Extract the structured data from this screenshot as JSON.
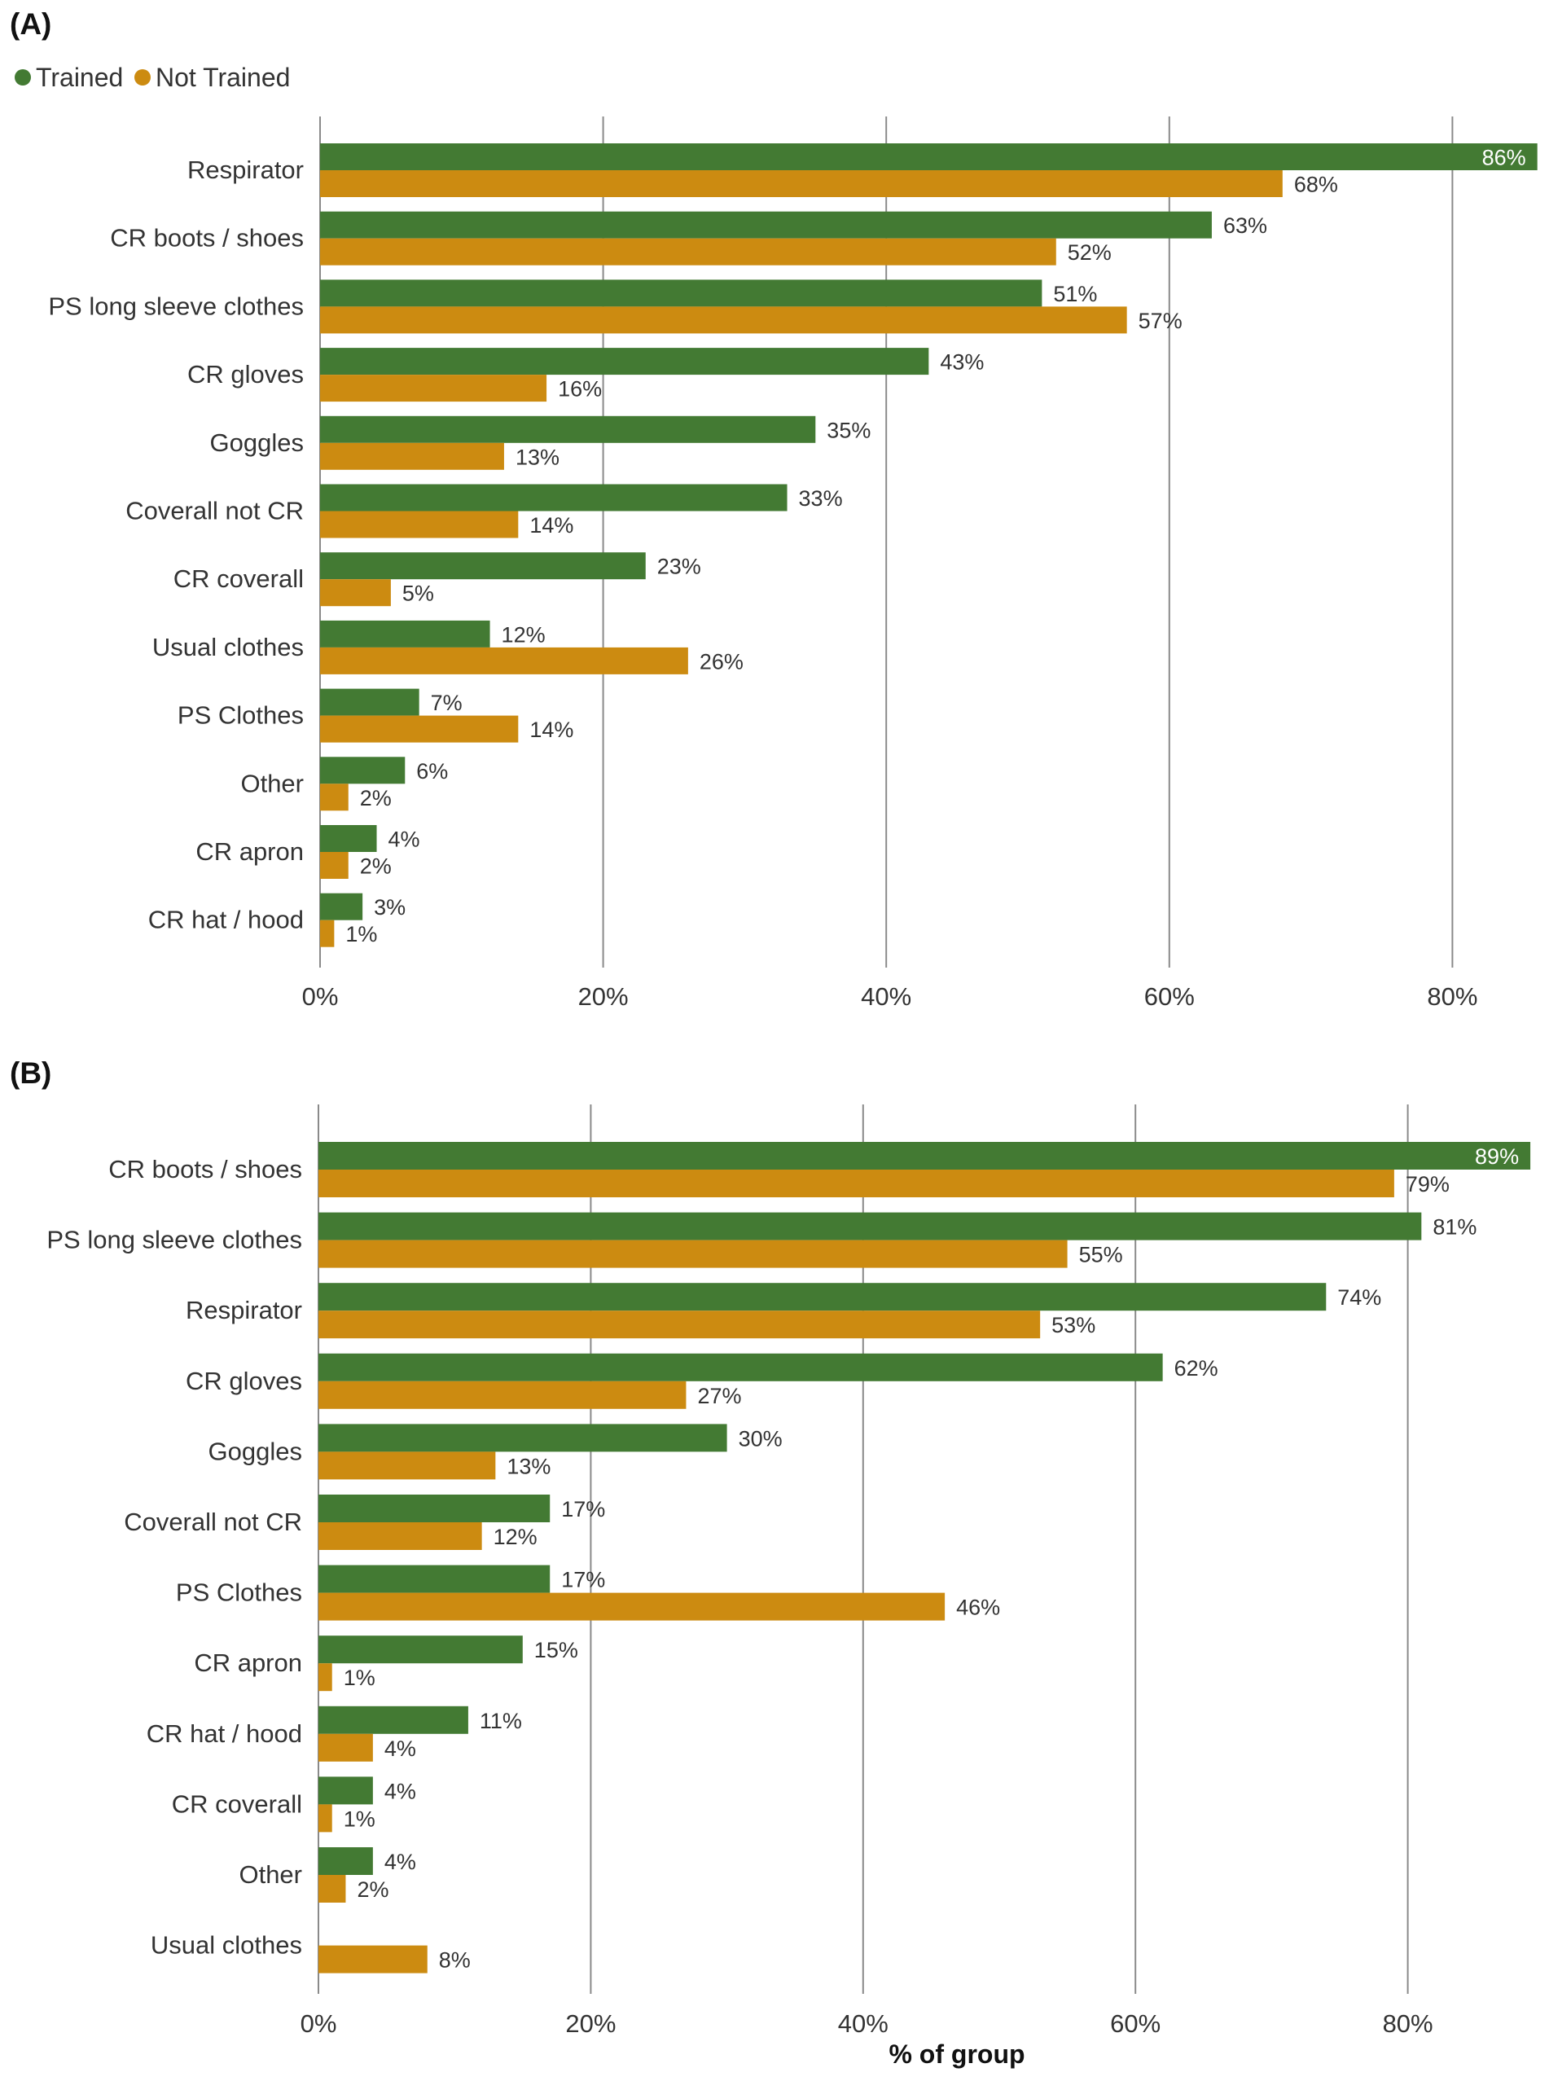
{
  "legend": {
    "trained_label": "Trained",
    "not_trained_label": "Not Trained"
  },
  "colors": {
    "trained": "#437a33",
    "not_trained": "#cc8b11",
    "grid": "#8a8a8a"
  },
  "chart_data": [
    {
      "panel": "(A)",
      "type": "bar",
      "orientation": "horizontal",
      "categories": [
        "Respirator",
        "CR boots / shoes",
        "PS long sleeve clothes",
        "CR gloves",
        "Goggles",
        "Coverall not CR",
        "CR coverall",
        "Usual clothes",
        "PS Clothes",
        "Other",
        "CR apron",
        "CR hat / hood"
      ],
      "series": [
        {
          "name": "Trained",
          "values": [
            86,
            63,
            51,
            43,
            35,
            33,
            23,
            12,
            7,
            6,
            4,
            3
          ],
          "labels": [
            "86%",
            "63%",
            "51%",
            "43%",
            "35%",
            "33%",
            "23%",
            "12%",
            "7%",
            "6%",
            "4%",
            "3%"
          ]
        },
        {
          "name": "Not Trained",
          "values": [
            68,
            52,
            57,
            16,
            13,
            14,
            5,
            26,
            14,
            2,
            2,
            1
          ],
          "labels": [
            "68%",
            "52%",
            "57%",
            "16%",
            "13%",
            "14%",
            "5%",
            "26%",
            "14%",
            "2%",
            "2%",
            "1%"
          ]
        }
      ],
      "xticks": [
        "0%",
        "20%",
        "40%",
        "60%",
        "80%"
      ],
      "xlim": [
        0,
        86
      ],
      "xlabel": "",
      "legend_position": "top-left"
    },
    {
      "panel": "(B)",
      "type": "bar",
      "orientation": "horizontal",
      "categories": [
        "CR boots / shoes",
        "PS long sleeve clothes",
        "Respirator",
        "CR gloves",
        "Goggles",
        "Coverall not CR",
        "PS Clothes",
        "CR apron",
        "CR hat / hood",
        "CR coverall",
        "Other",
        "Usual clothes"
      ],
      "series": [
        {
          "name": "Trained",
          "values": [
            89,
            81,
            74,
            62,
            30,
            17,
            17,
            15,
            11,
            4,
            4,
            0
          ],
          "labels": [
            "89%",
            "81%",
            "74%",
            "62%",
            "30%",
            "17%",
            "17%",
            "15%",
            "11%",
            "4%",
            "4%",
            ""
          ]
        },
        {
          "name": "Not Trained",
          "values": [
            79,
            55,
            53,
            27,
            13,
            12,
            46,
            1,
            4,
            1,
            2,
            8
          ],
          "labels": [
            "79%",
            "55%",
            "53%",
            "27%",
            "13%",
            "12%",
            "46%",
            "1%",
            "4%",
            "1%",
            "2%",
            "8%"
          ]
        }
      ],
      "xticks": [
        "0%",
        "20%",
        "40%",
        "60%",
        "80%"
      ],
      "xlim": [
        0,
        89
      ],
      "xlabel": "% of group"
    }
  ]
}
